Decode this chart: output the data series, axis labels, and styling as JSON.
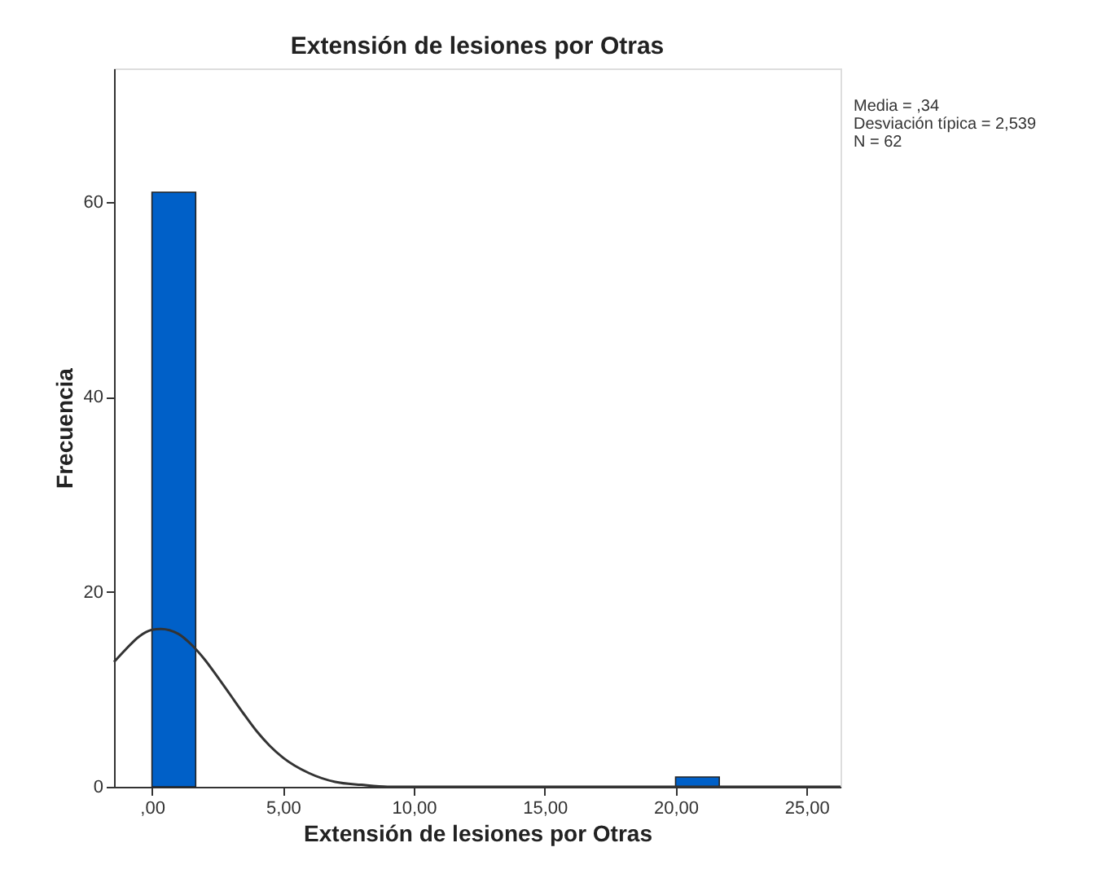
{
  "chart_data": {
    "type": "histogram",
    "title": "Extensión de lesiones por Otras",
    "xlabel": "Extensión de lesiones por Otras",
    "ylabel": "Frecuencia",
    "bins": [
      0,
      1.67,
      3.33,
      5,
      6.67,
      8.33,
      10,
      11.67,
      13.33,
      15,
      16.67,
      18.33,
      20,
      21.67
    ],
    "values": [
      61,
      0,
      0,
      0,
      0,
      0,
      0,
      0,
      0,
      0,
      0,
      0,
      1
    ],
    "color": "#0060c8",
    "series": [
      {
        "type": "line",
        "color": "#333333",
        "x": [
          -1.45,
          -1,
          -0.5,
          0,
          0.34,
          1,
          1.5,
          2,
          2.5,
          3,
          3.5,
          4,
          4.5,
          5,
          6,
          7,
          8,
          9,
          10,
          12,
          15,
          20,
          26.3
        ],
        "values": [
          12.8,
          14.1,
          15.4,
          16.1,
          16.2,
          15.7,
          14.6,
          13.1,
          11.3,
          9.4,
          7.5,
          5.7,
          4.2,
          3.0,
          1.4,
          0.5,
          0.2,
          0,
          0,
          0,
          0,
          0,
          0
        ]
      }
    ],
    "xlim": [
      -1.45,
      26.3
    ],
    "ylim": [
      0,
      73.7
    ],
    "xticks": [
      {
        "value": 0,
        "label": ",00"
      },
      {
        "value": 5,
        "label": "5,00"
      },
      {
        "value": 10,
        "label": "10,00"
      },
      {
        "value": 15,
        "label": "15,00"
      },
      {
        "value": 20,
        "label": "20,00"
      },
      {
        "value": 25,
        "label": "25,00"
      }
    ],
    "yticks": [
      0,
      20,
      40,
      60
    ],
    "grid": false,
    "annotations": [
      "Media = ,34",
      "Desviación típica = 2,539",
      "N = 62"
    ]
  }
}
